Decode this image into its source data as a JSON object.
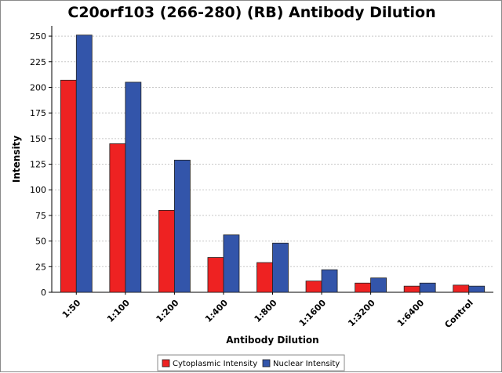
{
  "chart_data": {
    "type": "bar",
    "title": "C20orf103 (266-280) (RB) Antibody Dilution",
    "xlabel": "Antibody Dilution",
    "ylabel": "Intensity",
    "ylim": [
      0,
      260
    ],
    "yticks": [
      0,
      25,
      50,
      75,
      100,
      125,
      150,
      175,
      200,
      225,
      250
    ],
    "grid": true,
    "legend_position": "bottom",
    "categories": [
      "1:50",
      "1:100",
      "1:200",
      "1:400",
      "1:800",
      "1:1600",
      "1:3200",
      "1:6400",
      "Control"
    ],
    "series": [
      {
        "name": "Cytoplasmic Intensity",
        "color": "#ee2222",
        "values": [
          207,
          145,
          80,
          34,
          29,
          11,
          9,
          6,
          7
        ]
      },
      {
        "name": "Nuclear Intensity",
        "color": "#3355aa",
        "values": [
          251,
          205,
          129,
          56,
          48,
          22,
          14,
          9,
          6
        ]
      }
    ]
  }
}
